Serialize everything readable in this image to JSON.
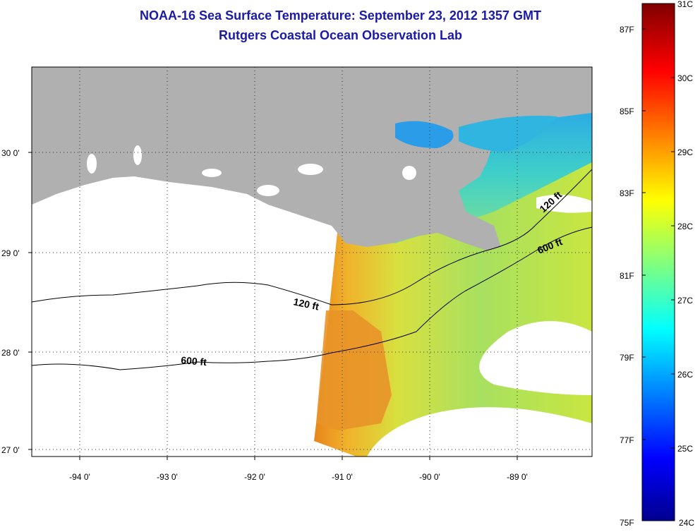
{
  "title": "NOAA-16 Sea Surface Temperature:  September 23, 2012 1357 GMT",
  "subtitle": "Rutgers Coastal Ocean Observation Lab",
  "lat_labels": [
    "30 0'",
    "29 0'",
    "28 0'",
    "27 0'"
  ],
  "lon_labels": [
    "-94 0'",
    "-93 0'",
    "-92 0'",
    "-91 0'",
    "-90 0'",
    "-89 0'"
  ],
  "contours": [
    "120 ft",
    "600 ft",
    "120 ft",
    "600 ft"
  ],
  "colorbar": {
    "f_labels": [
      "87F",
      "85F",
      "83F",
      "81F",
      "79F",
      "77F",
      "75F"
    ],
    "c_labels": [
      "31C",
      "30C",
      "29C",
      "28C",
      "27C",
      "26C",
      "25C",
      "24C"
    ]
  },
  "colors": {
    "land": "#b0b0b0",
    "title": "#1a1aa8"
  }
}
